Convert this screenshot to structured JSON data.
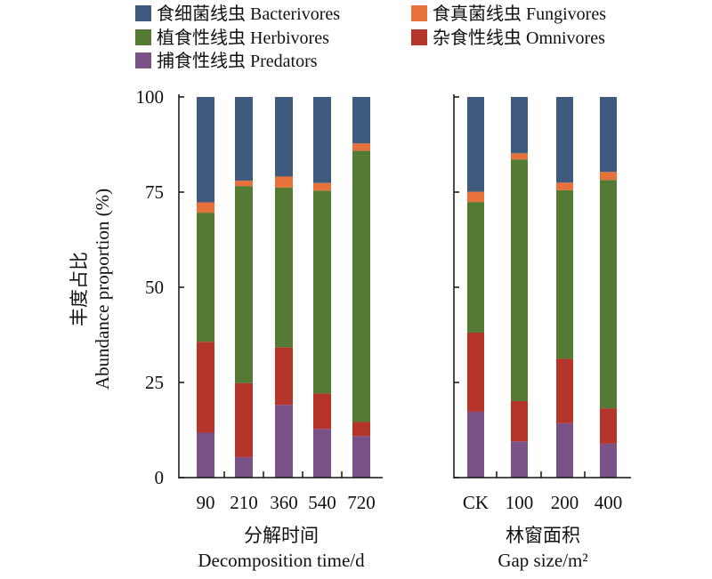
{
  "chart_data": [
    {
      "type": "bar",
      "stacked": true,
      "xlabel_cn": "分解时间",
      "xlabel": "Decomposition time/d",
      "ylabel_cn": "丰度占比",
      "ylabel": "Abundance proportion (%)",
      "ylim": [
        0,
        100
      ],
      "yticks": [
        "0",
        "25",
        "50",
        "75",
        "100"
      ],
      "categories": [
        "90",
        "210",
        "360",
        "540",
        "720"
      ],
      "series": [
        {
          "name": "捕食性线虫 Predators",
          "color": "#7a5288",
          "values": [
            11.8,
            5.4,
            19.1,
            12.8,
            10.9
          ]
        },
        {
          "name": "杂食性线虫 Omnivores",
          "color": "#b5352b",
          "values": [
            23.9,
            19.4,
            15.1,
            9.3,
            3.7
          ]
        },
        {
          "name": "植食性线虫 Herbivores",
          "color": "#557a33",
          "values": [
            33.9,
            51.8,
            42.0,
            53.3,
            71.3
          ]
        },
        {
          "name": "食真菌线虫 Fungivores",
          "color": "#e8703a",
          "values": [
            2.7,
            1.4,
            2.9,
            2.0,
            1.9
          ]
        },
        {
          "name": "食细菌线虫 Bacterivores",
          "color": "#3f5a7f",
          "values": [
            27.7,
            22.0,
            20.9,
            22.6,
            12.2
          ]
        }
      ]
    },
    {
      "type": "bar",
      "stacked": true,
      "xlabel_cn": "林窗面积",
      "xlabel": "Gap size/m²",
      "ylim": [
        0,
        100
      ],
      "categories": [
        "CK",
        "100",
        "200",
        "400"
      ],
      "series": [
        {
          "name": "捕食性线虫 Predators",
          "color": "#7a5288",
          "values": [
            17.3,
            9.5,
            14.3,
            8.9
          ]
        },
        {
          "name": "杂食性线虫 Omnivores",
          "color": "#b5352b",
          "values": [
            20.8,
            10.6,
            16.9,
            9.3
          ]
        },
        {
          "name": "植食性线虫 Herbivores",
          "color": "#557a33",
          "values": [
            34.3,
            63.5,
            44.3,
            60.0
          ]
        },
        {
          "name": "食真菌线虫 Fungivores",
          "color": "#e8703a",
          "values": [
            2.7,
            1.6,
            2.0,
            2.1
          ]
        },
        {
          "name": "食细菌线虫 Bacterivores",
          "color": "#3f5a7f",
          "values": [
            24.9,
            14.8,
            22.5,
            19.7
          ]
        }
      ]
    }
  ],
  "legend": {
    "placement": "top",
    "items": [
      {
        "label": "食细菌线虫 Bacterivores",
        "color": "#3f5a7f"
      },
      {
        "label": "食真菌线虫 Fungivores",
        "color": "#e8703a"
      },
      {
        "label": "植食性线虫 Herbivores",
        "color": "#557a33"
      },
      {
        "label": "杂食性线虫 Omnivores",
        "color": "#b5352b"
      },
      {
        "label": "捕食性线虫 Predators",
        "color": "#7a5288"
      }
    ]
  }
}
